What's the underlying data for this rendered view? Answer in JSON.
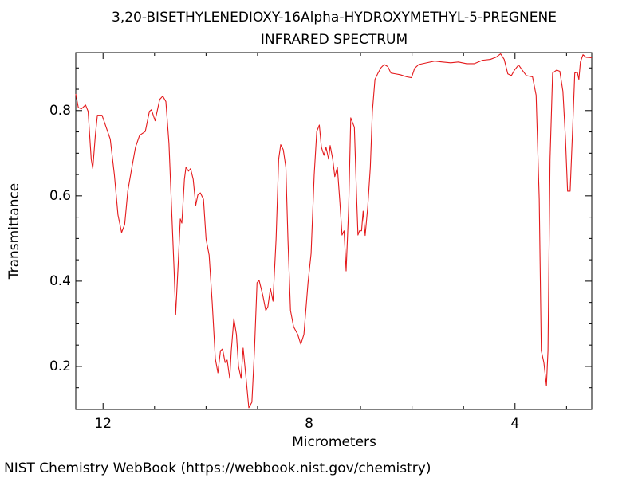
{
  "chart_data": {
    "type": "line",
    "title": "3,20-BISETHYLENEDIOXY-16Alpha-HYDROXYMETHYL-5-PREGNENE",
    "subtitle": "INFRARED SPECTRUM",
    "xlabel": "Micrometers",
    "ylabel": "Transmittance",
    "source": "NIST Chemistry WebBook (https://webbook.nist.gov/chemistry)",
    "color": "#e41a1c",
    "xlim": [
      12.53,
      2.51
    ],
    "ylim": [
      0.099,
      0.936
    ],
    "xticks": [
      12,
      8,
      4
    ],
    "xminorticks": [
      11,
      10,
      9,
      7,
      6,
      5,
      3
    ],
    "yticks": [
      0.2,
      0.4,
      0.6,
      0.8
    ],
    "yminorticks": [
      0.15,
      0.25,
      0.3,
      0.35,
      0.45,
      0.5,
      0.55,
      0.65,
      0.7,
      0.75,
      0.85,
      0.9
    ],
    "x": [
      12.53,
      12.48,
      12.42,
      12.34,
      12.29,
      12.23,
      12.2,
      12.15,
      12.11,
      12.02,
      11.94,
      11.86,
      11.78,
      11.71,
      11.64,
      11.58,
      11.52,
      11.44,
      11.37,
      11.29,
      11.18,
      11.1,
      11.06,
      10.99,
      10.95,
      10.9,
      10.84,
      10.78,
      10.72,
      10.67,
      10.62,
      10.59,
      10.54,
      10.5,
      10.47,
      10.42,
      10.39,
      10.34,
      10.3,
      10.25,
      10.2,
      10.16,
      10.11,
      10.05,
      10.0,
      9.94,
      9.88,
      9.82,
      9.77,
      9.72,
      9.68,
      9.63,
      9.59,
      9.54,
      9.51,
      9.46,
      9.41,
      9.37,
      9.32,
      9.28,
      9.23,
      9.17,
      9.11,
      9.06,
      9.01,
      8.97,
      8.9,
      8.84,
      8.8,
      8.75,
      8.7,
      8.64,
      8.59,
      8.55,
      8.5,
      8.45,
      8.41,
      8.36,
      8.3,
      8.22,
      8.16,
      8.1,
      8.02,
      7.96,
      7.9,
      7.85,
      7.8,
      7.76,
      7.71,
      7.67,
      7.62,
      7.59,
      7.54,
      7.5,
      7.45,
      7.4,
      7.36,
      7.32,
      7.28,
      7.23,
      7.19,
      7.12,
      7.08,
      7.05,
      7.02,
      6.98,
      6.95,
      6.91,
      6.86,
      6.81,
      6.77,
      6.72,
      6.66,
      6.6,
      6.54,
      6.47,
      6.41,
      6.32,
      6.23,
      6.1,
      6.01,
      5.95,
      5.87,
      5.72,
      5.56,
      5.41,
      5.25,
      5.1,
      4.94,
      4.79,
      4.63,
      4.48,
      4.37,
      4.28,
      4.21,
      4.14,
      4.07,
      4.01,
      3.93,
      3.86,
      3.78,
      3.66,
      3.59,
      3.53,
      3.49,
      3.44,
      3.39,
      3.36,
      3.32,
      3.27,
      3.19,
      3.13,
      3.07,
      3.02,
      2.98,
      2.93,
      2.88,
      2.84,
      2.79,
      2.76,
      2.73,
      2.68,
      2.62,
      2.51
    ],
    "values": [
      0.839,
      0.807,
      0.804,
      0.813,
      0.798,
      0.686,
      0.664,
      0.742,
      0.789,
      0.789,
      0.761,
      0.733,
      0.649,
      0.555,
      0.514,
      0.533,
      0.611,
      0.667,
      0.714,
      0.742,
      0.751,
      0.798,
      0.802,
      0.776,
      0.798,
      0.826,
      0.834,
      0.821,
      0.723,
      0.574,
      0.424,
      0.322,
      0.443,
      0.546,
      0.536,
      0.639,
      0.667,
      0.658,
      0.664,
      0.639,
      0.578,
      0.602,
      0.607,
      0.592,
      0.499,
      0.461,
      0.349,
      0.218,
      0.185,
      0.237,
      0.241,
      0.209,
      0.215,
      0.172,
      0.237,
      0.312,
      0.275,
      0.2,
      0.172,
      0.243,
      0.181,
      0.103,
      0.116,
      0.237,
      0.396,
      0.402,
      0.368,
      0.331,
      0.34,
      0.383,
      0.353,
      0.499,
      0.686,
      0.72,
      0.708,
      0.667,
      0.499,
      0.331,
      0.293,
      0.275,
      0.252,
      0.275,
      0.396,
      0.465,
      0.649,
      0.751,
      0.766,
      0.714,
      0.695,
      0.714,
      0.686,
      0.718,
      0.686,
      0.645,
      0.667,
      0.583,
      0.508,
      0.518,
      0.424,
      0.574,
      0.783,
      0.761,
      0.611,
      0.508,
      0.518,
      0.518,
      0.564,
      0.507,
      0.574,
      0.667,
      0.798,
      0.873,
      0.888,
      0.901,
      0.908,
      0.903,
      0.888,
      0.886,
      0.884,
      0.879,
      0.877,
      0.899,
      0.908,
      0.912,
      0.916,
      0.914,
      0.912,
      0.914,
      0.91,
      0.91,
      0.918,
      0.92,
      0.925,
      0.933,
      0.92,
      0.886,
      0.882,
      0.895,
      0.907,
      0.895,
      0.882,
      0.879,
      0.836,
      0.592,
      0.237,
      0.209,
      0.155,
      0.237,
      0.686,
      0.888,
      0.895,
      0.892,
      0.845,
      0.733,
      0.611,
      0.611,
      0.761,
      0.888,
      0.89,
      0.873,
      0.914,
      0.931,
      0.925,
      0.924
    ]
  }
}
